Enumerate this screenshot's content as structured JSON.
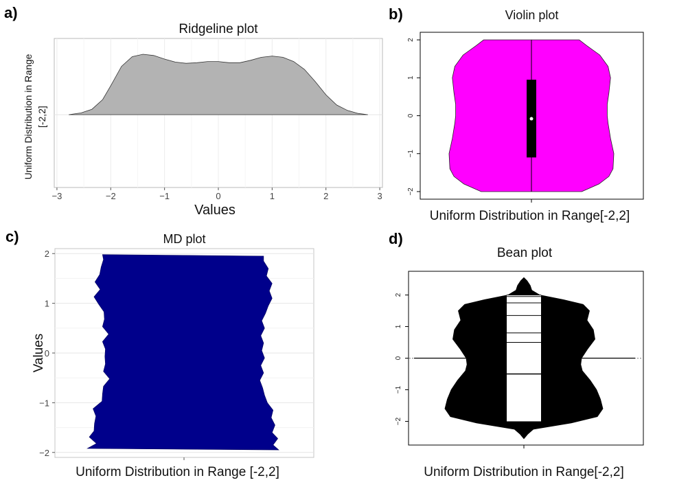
{
  "panels": {
    "a": {
      "letter": "a)"
    },
    "b": {
      "letter": "b)"
    },
    "c": {
      "letter": "c)"
    },
    "d": {
      "letter": "d)"
    }
  },
  "chart_data": [
    {
      "id": "ridgeline",
      "type": "area",
      "title": "Ridgeline plot",
      "xlabel": "Values",
      "ylabel_lines": [
        "Uniform Distribution in Range",
        "[-2,2]"
      ],
      "xlim": [
        -3.05,
        3.05
      ],
      "xticks": [
        -3,
        -2,
        -1,
        0,
        1,
        2,
        3
      ],
      "grid": true,
      "fill": "#b3b3b3",
      "density": {
        "x": [
          -2.78,
          -2.55,
          -2.35,
          -2.15,
          -2.0,
          -1.8,
          -1.6,
          -1.4,
          -1.2,
          -1.0,
          -0.8,
          -0.6,
          -0.4,
          -0.2,
          0.0,
          0.2,
          0.4,
          0.6,
          0.8,
          1.0,
          1.2,
          1.4,
          1.6,
          1.8,
          2.0,
          2.2,
          2.4,
          2.6,
          2.78
        ],
        "y": [
          0.0,
          0.03,
          0.09,
          0.25,
          0.48,
          0.8,
          0.96,
          1.0,
          0.98,
          0.92,
          0.87,
          0.85,
          0.86,
          0.88,
          0.88,
          0.86,
          0.86,
          0.9,
          0.95,
          0.97,
          0.95,
          0.88,
          0.75,
          0.55,
          0.33,
          0.16,
          0.07,
          0.02,
          0.0
        ]
      }
    },
    {
      "id": "violin",
      "type": "violin",
      "title": "Violin plot",
      "xlabel": "Uniform Distribution in Range[-2,2]",
      "ylim": [
        -2.2,
        2.2
      ],
      "yticks": [
        -2,
        -1,
        0,
        1,
        2
      ],
      "fill": "#ff00ff",
      "outline": [
        {
          "y": -2.0,
          "w": 0.61
        },
        {
          "y": -1.8,
          "w": 0.82
        },
        {
          "y": -1.6,
          "w": 0.94
        },
        {
          "y": -1.4,
          "w": 0.99
        },
        {
          "y": -1.0,
          "w": 1.0
        },
        {
          "y": -0.6,
          "w": 0.96
        },
        {
          "y": -0.2,
          "w": 0.93
        },
        {
          "y": 0.0,
          "w": 0.92
        },
        {
          "y": 0.3,
          "w": 0.92
        },
        {
          "y": 0.6,
          "w": 0.94
        },
        {
          "y": 1.0,
          "w": 0.96
        },
        {
          "y": 1.3,
          "w": 0.93
        },
        {
          "y": 1.6,
          "w": 0.83
        },
        {
          "y": 1.85,
          "w": 0.67
        },
        {
          "y": 2.0,
          "w": 0.58
        }
      ],
      "box": {
        "q1": -1.1,
        "median": -0.08,
        "q3": 0.95,
        "min": -2.0,
        "max": 2.0
      }
    },
    {
      "id": "md",
      "type": "violin",
      "title": "MD plot",
      "ylabel": "Values",
      "xlabel": "Uniform Distribution in Range [-2,2]",
      "ylim": [
        -2.1,
        2.1
      ],
      "yticks": [
        -2,
        -1,
        0,
        1,
        2
      ],
      "grid": true,
      "fill": "#00008b",
      "outline": [
        {
          "y": -1.95,
          "w": 1.0
        },
        {
          "y": -1.85,
          "w": 0.94
        },
        {
          "y": -1.72,
          "w": 0.99
        },
        {
          "y": -1.6,
          "w": 0.93
        },
        {
          "y": -1.45,
          "w": 0.96
        },
        {
          "y": -1.3,
          "w": 0.92
        },
        {
          "y": -1.15,
          "w": 0.94
        },
        {
          "y": -1.0,
          "w": 0.88
        },
        {
          "y": -0.85,
          "w": 0.85
        },
        {
          "y": -0.7,
          "w": 0.83
        },
        {
          "y": -0.55,
          "w": 0.8
        },
        {
          "y": -0.4,
          "w": 0.84
        },
        {
          "y": -0.25,
          "w": 0.81
        },
        {
          "y": -0.1,
          "w": 0.85
        },
        {
          "y": 0.05,
          "w": 0.82
        },
        {
          "y": 0.2,
          "w": 0.84
        },
        {
          "y": 0.35,
          "w": 0.81
        },
        {
          "y": 0.5,
          "w": 0.85
        },
        {
          "y": 0.65,
          "w": 0.82
        },
        {
          "y": 0.8,
          "w": 0.86
        },
        {
          "y": 0.95,
          "w": 0.89
        },
        {
          "y": 1.1,
          "w": 0.93
        },
        {
          "y": 1.25,
          "w": 0.9
        },
        {
          "y": 1.4,
          "w": 0.93
        },
        {
          "y": 1.55,
          "w": 0.87
        },
        {
          "y": 1.7,
          "w": 0.89
        },
        {
          "y": 1.85,
          "w": 0.84
        },
        {
          "y": 1.95,
          "w": 0.84
        }
      ]
    },
    {
      "id": "bean",
      "type": "violin",
      "title": "Bean plot",
      "xlabel": "Uniform Distribution in Range[-2,2]",
      "ylim": [
        -2.75,
        2.75
      ],
      "yticks": [
        -2,
        -1,
        0,
        1,
        2
      ],
      "fill": "#000000",
      "outline": [
        {
          "y": -2.55,
          "w": 0.0
        },
        {
          "y": -2.4,
          "w": 0.05
        },
        {
          "y": -2.25,
          "w": 0.12
        },
        {
          "y": -2.05,
          "w": 0.6
        },
        {
          "y": -1.85,
          "w": 0.93
        },
        {
          "y": -1.6,
          "w": 1.0
        },
        {
          "y": -1.3,
          "w": 0.97
        },
        {
          "y": -1.0,
          "w": 0.92
        },
        {
          "y": -0.7,
          "w": 0.84
        },
        {
          "y": -0.4,
          "w": 0.74
        },
        {
          "y": -0.2,
          "w": 0.72
        },
        {
          "y": 0.0,
          "w": 0.73
        },
        {
          "y": 0.3,
          "w": 0.81
        },
        {
          "y": 0.6,
          "w": 0.9
        },
        {
          "y": 0.9,
          "w": 0.88
        },
        {
          "y": 1.2,
          "w": 0.8
        },
        {
          "y": 1.5,
          "w": 0.83
        },
        {
          "y": 1.7,
          "w": 0.75
        },
        {
          "y": 1.85,
          "w": 0.5
        },
        {
          "y": 2.0,
          "w": 0.2
        },
        {
          "y": 2.15,
          "w": 0.1
        },
        {
          "y": 2.3,
          "w": 0.08
        },
        {
          "y": 2.45,
          "w": 0.04
        },
        {
          "y": 2.55,
          "w": 0.0
        }
      ],
      "bean_lines": [
        2.0,
        1.95,
        1.75,
        1.35,
        0.8,
        0.5,
        -0.5
      ],
      "beanline_range": [
        -2.0,
        2.0
      ],
      "whisker_y": 0.0
    }
  ]
}
